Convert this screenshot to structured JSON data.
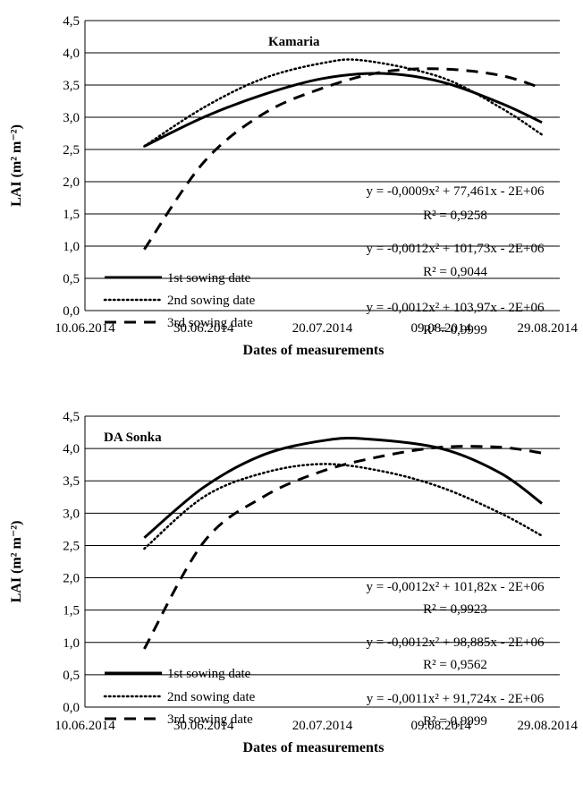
{
  "chart_data": [
    {
      "type": "line",
      "title": "Kamaria",
      "xlabel": "Dates of measurements",
      "ylabel": "LAI (m² m⁻²)",
      "x_ticks": [
        "10.06.2014",
        "30.06.2014",
        "20.07.2014",
        "09.08.2014",
        "29.08.2014"
      ],
      "y_ticks": [
        "0,0",
        "0,5",
        "1,0",
        "1,5",
        "2,0",
        "2,5",
        "3,0",
        "3,5",
        "4,0",
        "4,5"
      ],
      "ylim": [
        0,
        4.5
      ],
      "grid": "horizontal",
      "legend_position": "bottom-left",
      "series": [
        {
          "name": "1st sowing date",
          "style": "solid",
          "x": [
            "20.06.2014",
            "30.06.2014",
            "10.07.2014",
            "20.07.2014",
            "30.07.2014",
            "09.08.2014",
            "19.08.2014",
            "26.08.2014"
          ],
          "values": [
            2.55,
            3.0,
            3.35,
            3.6,
            3.68,
            3.55,
            3.22,
            2.92
          ]
        },
        {
          "name": "2nd sowing date",
          "style": "dotted",
          "x": [
            "20.06.2014",
            "30.06.2014",
            "10.07.2014",
            "20.07.2014",
            "27.07.2014",
            "09.08.2014",
            "19.08.2014",
            "26.08.2014"
          ],
          "values": [
            2.55,
            3.15,
            3.6,
            3.84,
            3.88,
            3.62,
            3.15,
            2.73
          ]
        },
        {
          "name": "3rd sowing date",
          "style": "dashed",
          "x": [
            "20.06.2014",
            "30.06.2014",
            "10.07.2014",
            "20.07.2014",
            "30.07.2014",
            "09.08.2014",
            "19.08.2014",
            "26.08.2014"
          ],
          "values": [
            0.95,
            2.3,
            3.05,
            3.45,
            3.7,
            3.75,
            3.65,
            3.45
          ]
        }
      ],
      "annotations": [
        {
          "equation": "y = -0,0009x² + 77,461x - 2E+06",
          "r2": "R² = 0,9258"
        },
        {
          "equation": "y = -0,0012x² + 101,73x - 2E+06",
          "r2": "R² = 0,9044"
        },
        {
          "equation": "y = -0,0012x² + 103,97x - 2E+06",
          "r2": "R² = 0,9999"
        }
      ]
    },
    {
      "type": "line",
      "title": "DA Sonka",
      "xlabel": "Dates of measurements",
      "ylabel": "LAI (m² m⁻²)",
      "x_ticks": [
        "10.06.2014",
        "30.06.2014",
        "20.07.2014",
        "09.08.2014",
        "29.08.2014"
      ],
      "y_ticks": [
        "0,0",
        "0,5",
        "1,0",
        "1,5",
        "2,0",
        "2,5",
        "3,0",
        "3,5",
        "4,0",
        "4,5"
      ],
      "ylim": [
        0,
        4.5
      ],
      "grid": "horizontal",
      "legend_position": "bottom-left",
      "series": [
        {
          "name": "1st sowing date",
          "style": "solid",
          "x": [
            "20.06.2014",
            "30.06.2014",
            "10.07.2014",
            "20.07.2014",
            "27.07.2014",
            "09.08.2014",
            "19.08.2014",
            "26.08.2014"
          ],
          "values": [
            2.62,
            3.4,
            3.9,
            4.12,
            4.15,
            4.0,
            3.62,
            3.15
          ]
        },
        {
          "name": "2nd sowing date",
          "style": "dotted",
          "x": [
            "20.06.2014",
            "30.06.2014",
            "10.07.2014",
            "20.07.2014",
            "30.07.2014",
            "09.08.2014",
            "19.08.2014",
            "26.08.2014"
          ],
          "values": [
            2.45,
            3.25,
            3.62,
            3.76,
            3.65,
            3.4,
            3.0,
            2.65
          ]
        },
        {
          "name": "3rd sowing date",
          "style": "dashed",
          "x": [
            "20.06.2014",
            "30.06.2014",
            "10.07.2014",
            "20.07.2014",
            "30.07.2014",
            "09.08.2014",
            "19.08.2014",
            "26.08.2014"
          ],
          "values": [
            0.9,
            2.55,
            3.25,
            3.65,
            3.88,
            4.02,
            4.02,
            3.93
          ]
        }
      ],
      "annotations": [
        {
          "equation": "y = -0,0012x² + 101,82x - 2E+06",
          "r2": "R² = 0,9923"
        },
        {
          "equation": "y = -0,0012x² + 98,885x - 2E+06",
          "r2": "R² = 0,9562"
        },
        {
          "equation": "y = -0,0011x² + 91,724x - 2E+06",
          "r2": "R² = 0,9999"
        }
      ]
    }
  ]
}
